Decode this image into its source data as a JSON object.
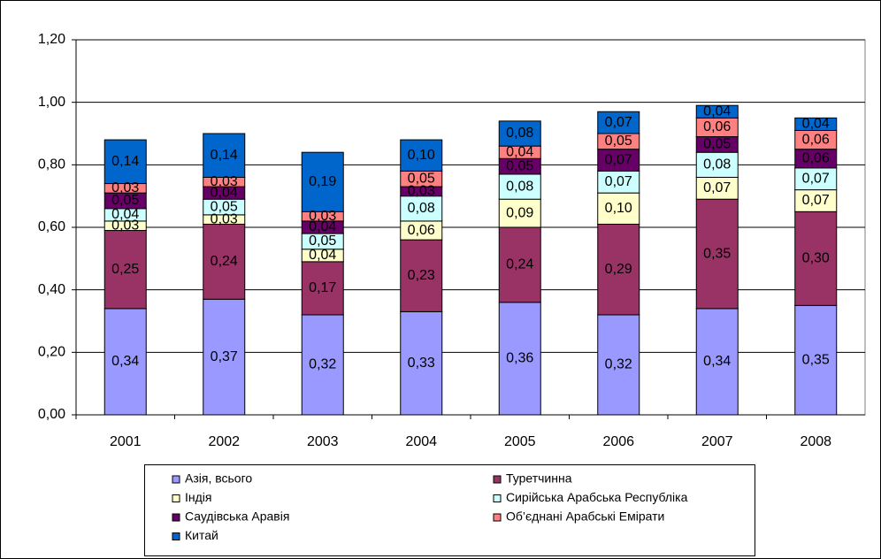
{
  "chart_data": {
    "type": "stacked_bar",
    "categories": [
      "2001",
      "2002",
      "2003",
      "2004",
      "2005",
      "2006",
      "2007",
      "2008"
    ],
    "series": [
      {
        "name": "Азія, всього",
        "color": "#9999FF",
        "values": [
          0.34,
          0.37,
          0.32,
          0.33,
          0.36,
          0.32,
          0.34,
          0.35
        ],
        "value_labels": [
          "0,34",
          "0,37",
          "0,32",
          "0,33",
          "0,36",
          "0,32",
          "0,34",
          "0,35"
        ]
      },
      {
        "name": "Туретчинна",
        "color": "#993366",
        "values": [
          0.25,
          0.24,
          0.17,
          0.23,
          0.24,
          0.29,
          0.35,
          0.3
        ],
        "value_labels": [
          "0,25",
          "0,24",
          "0,17",
          "0,23",
          "0,24",
          "0,29",
          "0,35",
          "0,30"
        ]
      },
      {
        "name": "Індія",
        "color": "#FFFFCC",
        "values": [
          0.03,
          0.03,
          0.04,
          0.06,
          0.09,
          0.1,
          0.07,
          0.07
        ],
        "value_labels": [
          "0,03",
          "0,03",
          "0,04",
          "0,06",
          "0,09",
          "0,10",
          "0,07",
          "0,07"
        ]
      },
      {
        "name": "Сирійська Арабська Республіка",
        "color": "#CCFFFF",
        "values": [
          0.04,
          0.05,
          0.05,
          0.08,
          0.08,
          0.07,
          0.08,
          0.07
        ],
        "value_labels": [
          "0,04",
          "0,05",
          "0,05",
          "0,08",
          "0,08",
          "0,07",
          "0,08",
          "0,07"
        ]
      },
      {
        "name": "Саудівська Аравія",
        "color": "#660066",
        "values": [
          0.05,
          0.04,
          0.04,
          0.03,
          0.05,
          0.07,
          0.05,
          0.06
        ],
        "value_labels": [
          "0,05",
          "0,04",
          "0,04",
          "0,03",
          "0,05",
          "0,07",
          "0,05",
          "0,06"
        ]
      },
      {
        "name": "Об’єднані Арабські Емірати",
        "color": "#FF8080",
        "values": [
          0.03,
          0.03,
          0.03,
          0.05,
          0.04,
          0.05,
          0.06,
          0.06
        ],
        "value_labels": [
          "0,03",
          "0,03",
          "0,03",
          "0,05",
          "0,04",
          "0,05",
          "0,06",
          "0,06"
        ]
      },
      {
        "name": "Китай",
        "color": "#0066CC",
        "values": [
          0.14,
          0.14,
          0.19,
          0.1,
          0.08,
          0.07,
          0.04,
          0.04
        ],
        "value_labels": [
          "0,14",
          "0,14",
          "0,19",
          "0,10",
          "0,08",
          "0,07",
          "0,04",
          "0,04"
        ]
      }
    ],
    "ylim": [
      0,
      1.2
    ],
    "yticks": [
      {
        "value": 0,
        "label": "0,00"
      },
      {
        "value": 0.2,
        "label": "0,20"
      },
      {
        "value": 0.4,
        "label": "0,40"
      },
      {
        "value": 0.6,
        "label": "0,60"
      },
      {
        "value": 0.8,
        "label": "0,80"
      },
      {
        "value": 1.0,
        "label": "1,00"
      },
      {
        "value": 1.2,
        "label": "1,20"
      }
    ],
    "grid": true
  }
}
